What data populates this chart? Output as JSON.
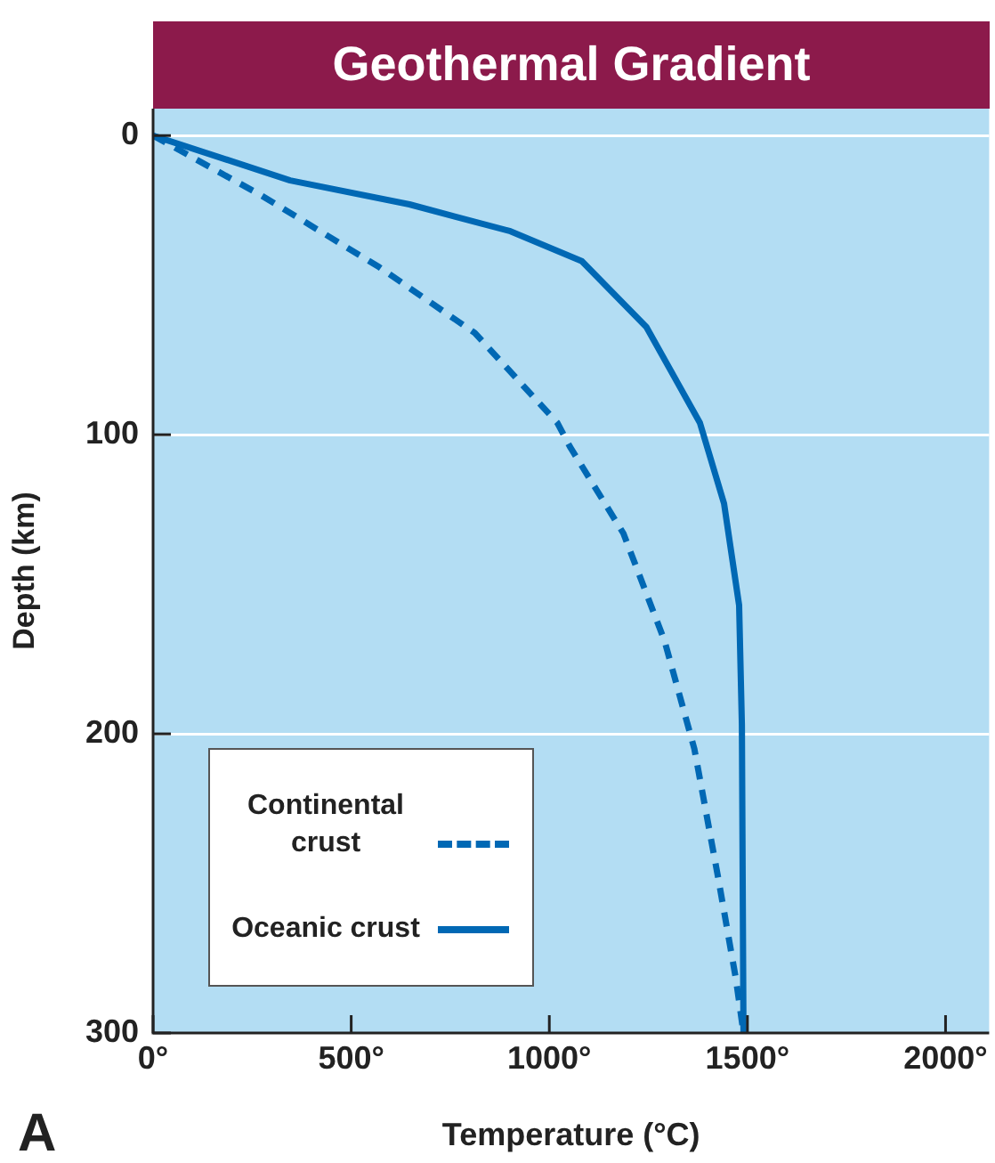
{
  "chart_data": {
    "type": "line",
    "title": "Geothermal Gradient",
    "xlabel": "Temperature (°C)",
    "ylabel": "Depth (km)",
    "xlim": [
      0,
      2110
    ],
    "xticks": [
      {
        "value": 0,
        "label": "0°"
      },
      {
        "value": 500,
        "label": "500°"
      },
      {
        "value": 1000,
        "label": "1000°"
      },
      {
        "value": 1500,
        "label": "1500°"
      },
      {
        "value": 2000,
        "label": "2000°"
      }
    ],
    "ylim": [
      300,
      -9
    ],
    "yticks": [
      0,
      100,
      200,
      300
    ],
    "grid": "y",
    "legend": "bottom left",
    "marker": "none",
    "annotations": [
      "A"
    ],
    "series": [
      {
        "name": "Continental crust",
        "color": "#0068b4",
        "line_style": "dashed",
        "x": [
          0,
          273,
          571,
          812,
          1020,
          1052,
          1187,
          1291,
          1366,
          1426,
          1471,
          1490
        ],
        "values": [
          0,
          20,
          44,
          66,
          96,
          104,
          133,
          169,
          205,
          248,
          282,
          300
        ]
      },
      {
        "name": "Oceanic crust",
        "color": "#0068b4",
        "line_style": "solid",
        "x": [
          0,
          346,
          647,
          902,
          1082,
          1245,
          1380,
          1441,
          1479,
          1486,
          1490
        ],
        "values": [
          0,
          15,
          23,
          32,
          42,
          64,
          96,
          123,
          157,
          197,
          300
        ]
      }
    ]
  }
}
